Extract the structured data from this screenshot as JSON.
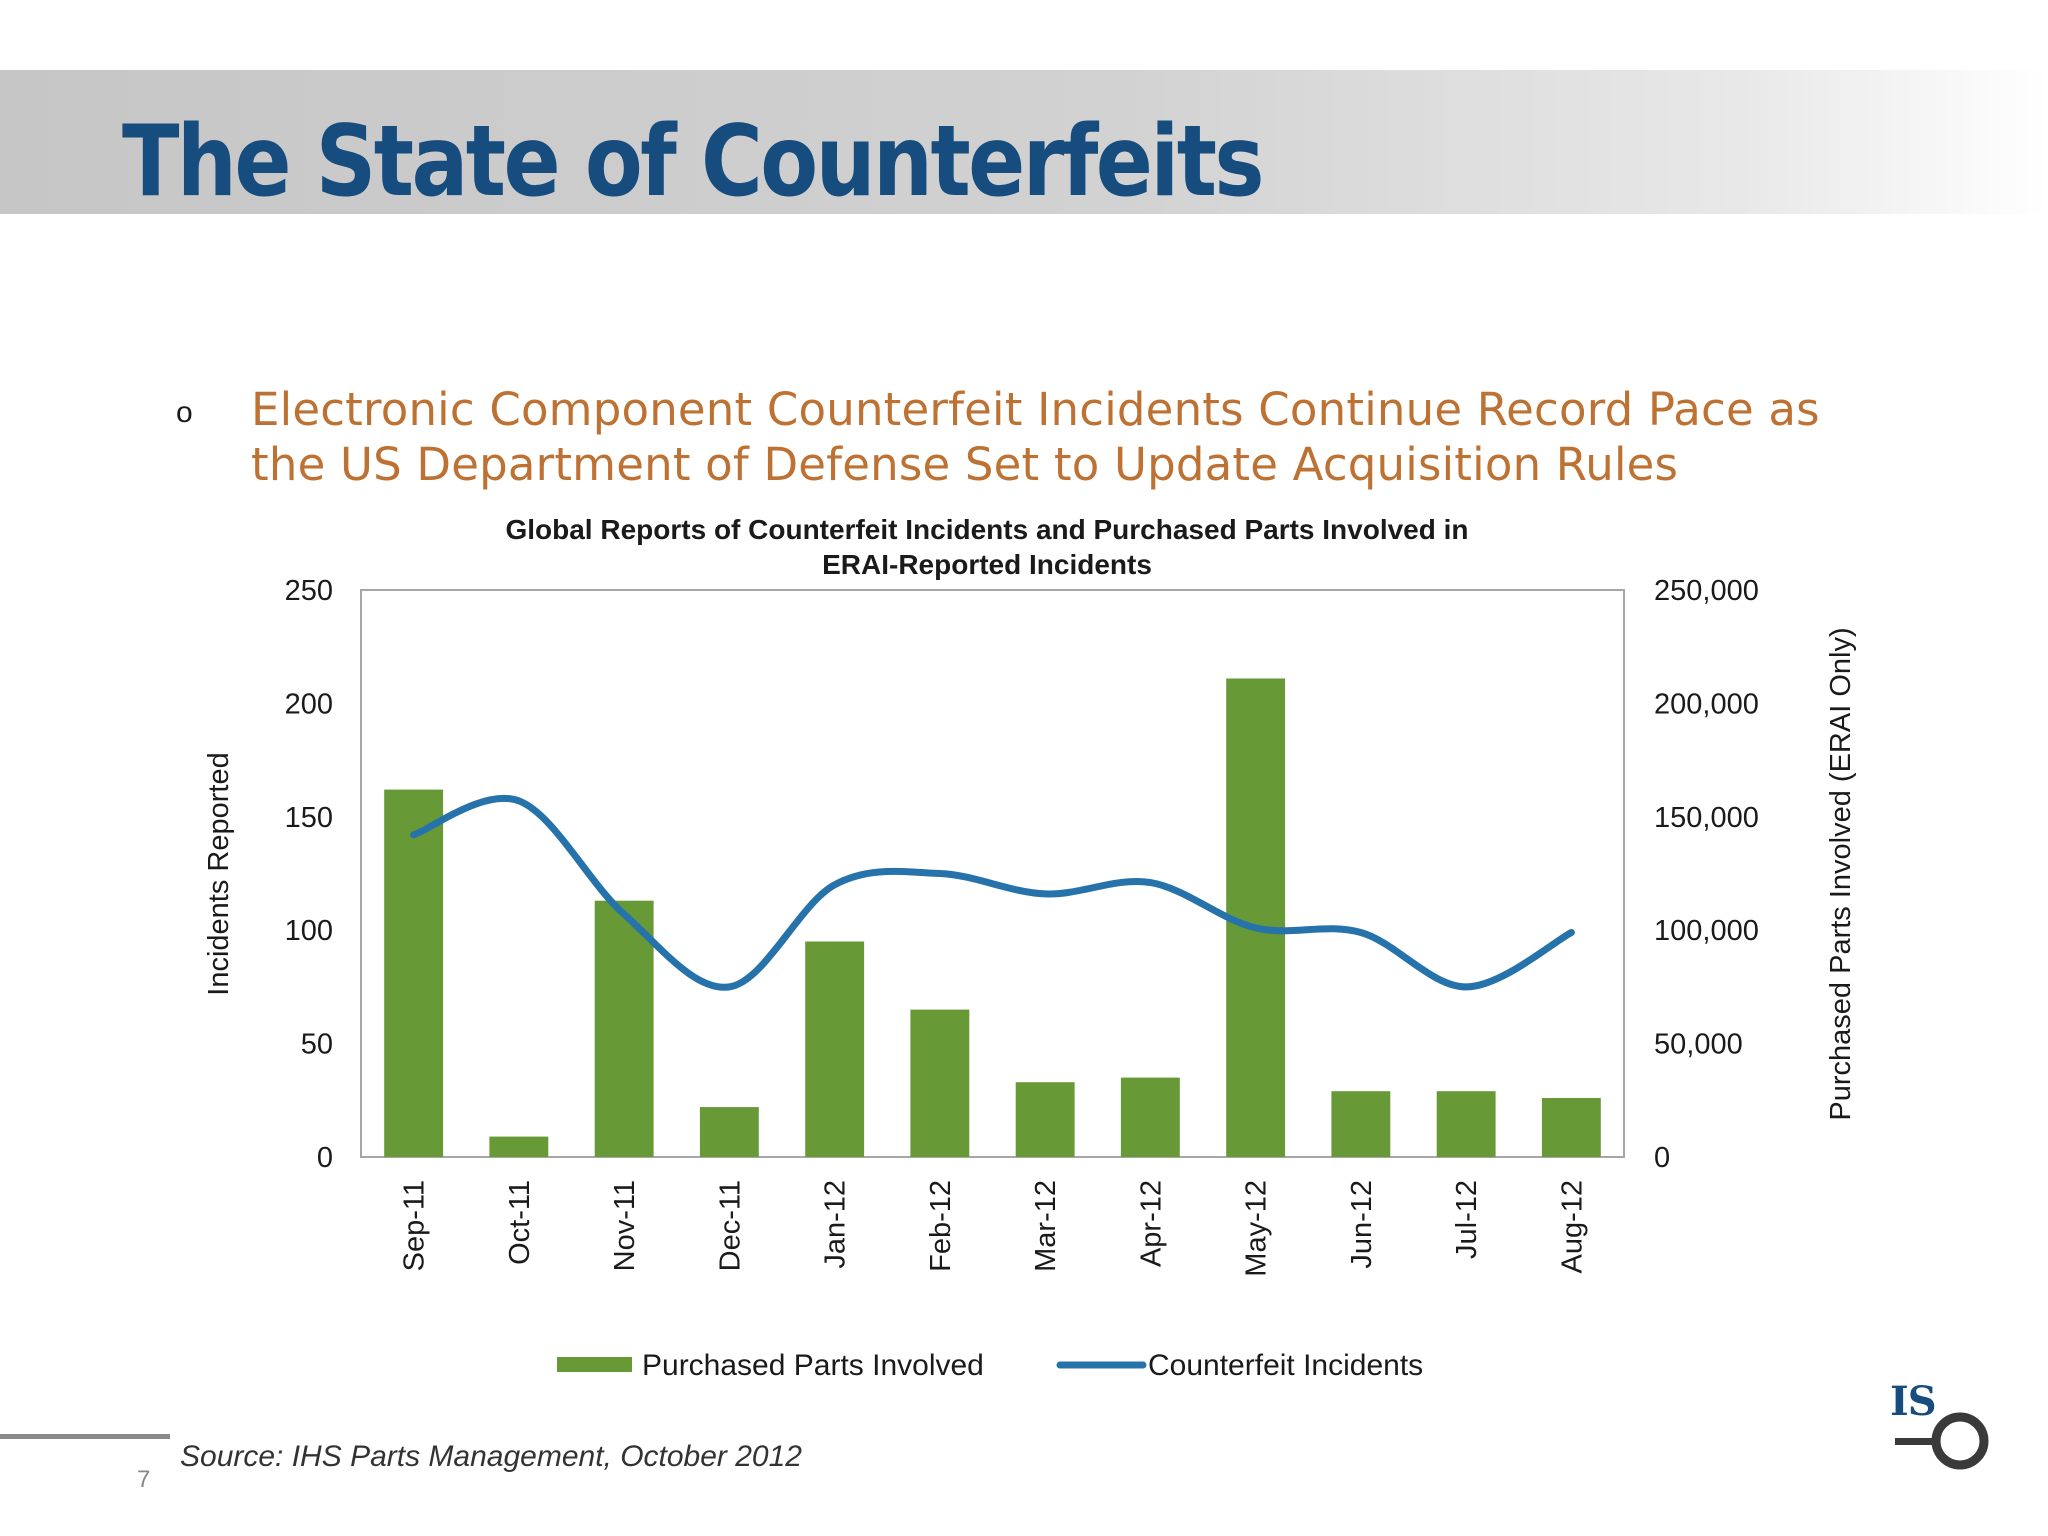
{
  "slide": {
    "title": "The State of Counterfeits",
    "bullet_marker": "o",
    "bullet_text": "Electronic Component Counterfeit Incidents Continue Record Pace as the US Department of Defense Set to Update Acquisition Rules",
    "page_number": "7",
    "brand_text": "IS",
    "brand_icon": "ihs-logo-circle-icon",
    "colors": {
      "title": "#174c7e",
      "bullet": "#bd7233",
      "bar": "#679937",
      "line": "#2673ab"
    }
  },
  "chart_data": {
    "type": "bar",
    "title": "Global Reports of Counterfeit Incidents and Purchased Parts Involved in ERAI-Reported Incidents",
    "title_lines": [
      "Global Reports of Counterfeit Incidents and Purchased Parts Involved in",
      "ERAI-Reported Incidents"
    ],
    "categories": [
      "Sep-11",
      "Oct-11",
      "Nov-11",
      "Dec-11",
      "Jan-12",
      "Feb-12",
      "Mar-12",
      "Apr-12",
      "May-12",
      "Jun-12",
      "Jul-12",
      "Aug-12"
    ],
    "series": [
      {
        "name": "Purchased Parts Involved",
        "type": "bar",
        "axis": "right",
        "color": "#679937",
        "values": [
          162000,
          9000,
          113000,
          22000,
          95000,
          65000,
          33000,
          35000,
          211000,
          29000,
          29000,
          26000
        ]
      },
      {
        "name": "Counterfeit Incidents",
        "type": "line",
        "axis": "left",
        "color": "#2673ab",
        "values": [
          142,
          157,
          107,
          75,
          120,
          125,
          116,
          121,
          101,
          99,
          75,
          99
        ]
      }
    ],
    "ylabel": "Incidents Reported",
    "ylim": [
      0,
      250
    ],
    "yticks": [
      "0",
      "50",
      "100",
      "150",
      "200",
      "250"
    ],
    "y2label": "Purchased Parts Involved (ERAI Only)",
    "y2lim": [
      0,
      250000
    ],
    "y2ticks": [
      "0",
      "50,000",
      "100,000",
      "150,000",
      "200,000",
      "250,000"
    ],
    "grid": false,
    "legend_position": "bottom",
    "source": "Source: IHS Parts Management, October 2012"
  }
}
